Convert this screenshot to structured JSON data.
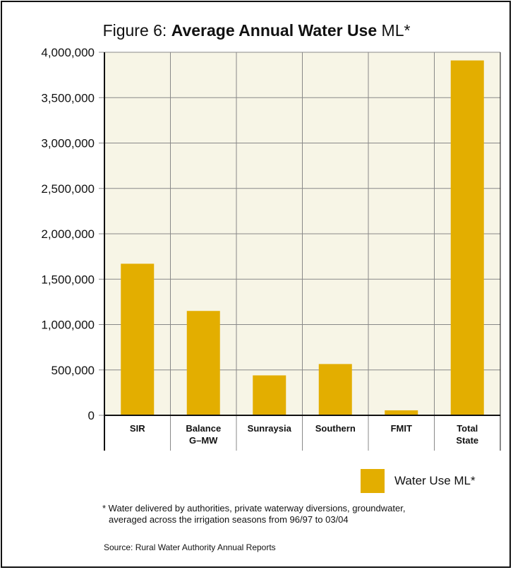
{
  "chart_data": {
    "type": "bar",
    "title_prefix": "Figure 6: ",
    "title_bold": "Average Annual Water Use",
    "title_suffix": " ML*",
    "categories": [
      [
        "SIR"
      ],
      [
        "Balance",
        "G–MW"
      ],
      [
        "Sunraysia"
      ],
      [
        "Southern"
      ],
      [
        "FMIT"
      ],
      [
        "Total",
        "State"
      ]
    ],
    "series": [
      {
        "name": "Water Use ML*",
        "values": [
          1670000,
          1150000,
          440000,
          565000,
          55000,
          3910000
        ],
        "color": "#E3AE00"
      }
    ],
    "ylim": [
      0,
      4000000
    ],
    "yticks": [
      0,
      500000,
      1000000,
      1500000,
      2000000,
      2500000,
      3000000,
      3500000,
      4000000
    ],
    "ytick_labels": [
      "0",
      "500,000",
      "1,000,000",
      "1,500,000",
      "2,000,000",
      "2,500,000",
      "3,000,000",
      "3,500,000",
      "4,000,000"
    ],
    "plot_background": "#F7F5E6",
    "grid": true,
    "legend_position": "bottom-right"
  },
  "footnote": {
    "line1": "* Water delivered by authorities, private waterway diversions, groundwater,",
    "line2": "averaged across the irrigation seasons from 96/97 to 03/04"
  },
  "source": "Source: Rural Water Authority Annual Reports"
}
